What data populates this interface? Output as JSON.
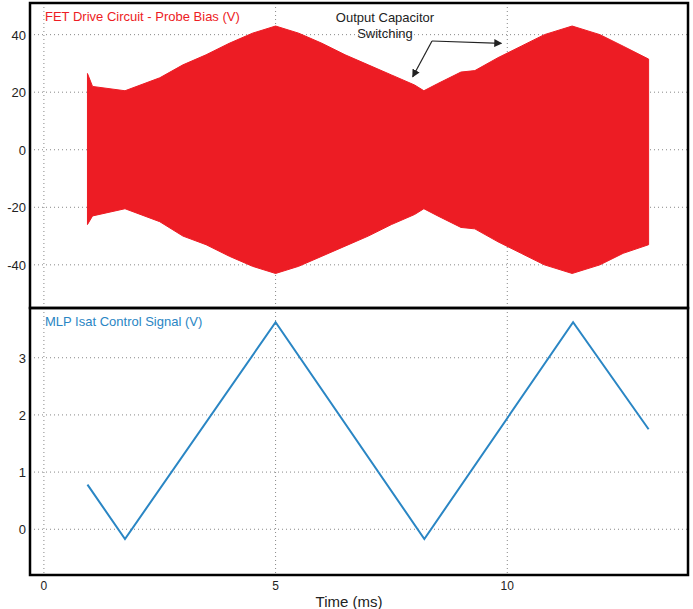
{
  "chart_data": [
    {
      "type": "area",
      "title": "FET Drive Circuit - Probe Bias (V)",
      "x": [
        0.94,
        1.05,
        1.75,
        2.5,
        3.0,
        3.5,
        4.0,
        4.5,
        5.0,
        5.5,
        6.0,
        6.5,
        7.0,
        7.5,
        8.0,
        8.2,
        8.5,
        9.0,
        9.3,
        9.8,
        10.3,
        10.8,
        11.4,
        12.0,
        12.5,
        13.05
      ],
      "series": [
        {
          "color": "#ed1c24",
          "values": [
            26.5,
            22,
            20.5,
            25,
            29.5,
            33,
            37,
            40.5,
            43,
            40.5,
            37,
            33,
            29.5,
            26,
            22.5,
            20.5,
            23,
            27,
            27.5,
            32,
            36,
            40,
            43,
            40,
            36,
            31.5
          ],
          "lower": [
            -26,
            -23,
            -20.5,
            -25,
            -30,
            -33,
            -37,
            -40.5,
            -43,
            -40.5,
            -37,
            -33.5,
            -30,
            -26,
            -22.5,
            -20.5,
            -23,
            -27,
            -27.5,
            -32,
            -36,
            -40,
            -43,
            -40,
            -36,
            -33
          ]
        }
      ],
      "xlim": [
        -0.3,
        13.9
      ],
      "xticks": [
        0,
        5,
        10
      ],
      "ylim": [
        -55,
        51
      ],
      "yticks": [
        -40,
        -20,
        0,
        20,
        40
      ],
      "grid": true,
      "tick_labels": "y",
      "annotations": [
        {
          "text": "Output Capacitor\nSwitching",
          "points": [
            [
              7.96,
              25.4
            ],
            [
              9.87,
              37
            ]
          ]
        }
      ]
    },
    {
      "type": "line",
      "title": "MLP Isat Control Signal (V)",
      "xlabel": "Time (ms)",
      "x": [
        0.94,
        1.75,
        5.0,
        8.21,
        11.42,
        13.05
      ],
      "series": [
        {
          "color": "#2a86c4",
          "values": [
            0.78,
            -0.17,
            3.62,
            -0.17,
            3.62,
            1.75
          ]
        }
      ],
      "xlim": [
        -0.3,
        13.9
      ],
      "xticks": [
        0,
        5,
        10
      ],
      "ylim": [
        -0.8,
        3.87
      ],
      "yticks": [
        0,
        1,
        2,
        3
      ],
      "grid": true
    }
  ]
}
